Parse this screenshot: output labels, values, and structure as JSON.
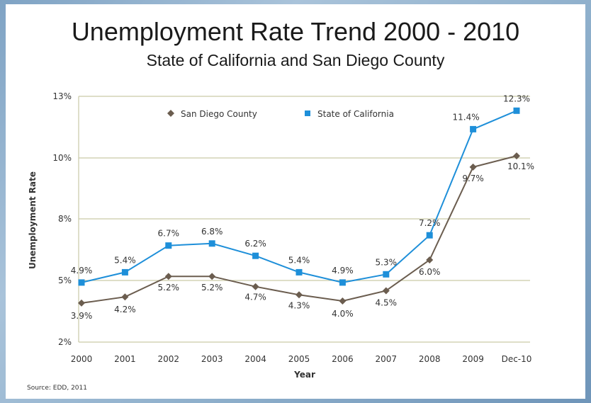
{
  "chart_data": {
    "type": "line",
    "title": "Unemployment Rate Trend 2000 - 2010",
    "subtitle": "State of California and San Diego County",
    "xlabel": "Year",
    "ylabel": "Unemployment Rate",
    "categories": [
      "2000",
      "2001",
      "2002",
      "2003",
      "2004",
      "2005",
      "2006",
      "2007",
      "2008",
      "2009",
      "Dec-10"
    ],
    "y_ticks": [
      {
        "value": 2,
        "label": "2%"
      },
      {
        "value": 5,
        "label": "5%"
      },
      {
        "value": 8,
        "label": "8%"
      },
      {
        "value": 10,
        "label": "10%"
      },
      {
        "value": 13,
        "label": "13%"
      }
    ],
    "ylim": [
      2,
      13
    ],
    "grid": "horizontal",
    "legend_position": "top-left",
    "series": [
      {
        "name": "San Diego County",
        "color": "#6b5d4f",
        "marker": "diamond",
        "values": [
          3.9,
          4.2,
          5.2,
          5.2,
          4.7,
          4.3,
          4.0,
          4.5,
          6.0,
          9.7,
          10.1
        ],
        "labels": [
          "3.9%",
          "4.2%",
          "5.2%",
          "5.2%",
          "4.7%",
          "4.3%",
          "4.0%",
          "4.5%",
          "6.0%",
          "9.7%",
          "10.1%"
        ]
      },
      {
        "name": "State of California",
        "color": "#1e8fd9",
        "marker": "square",
        "values": [
          4.9,
          5.4,
          6.7,
          6.8,
          6.2,
          5.4,
          4.9,
          5.3,
          7.2,
          11.4,
          12.3
        ],
        "labels": [
          "4.9%",
          "5.4%",
          "6.7%",
          "6.8%",
          "6.2%",
          "5.4%",
          "4.9%",
          "5.3%",
          "7.2%",
          "11.4%",
          "12.3%"
        ]
      }
    ],
    "source": "Source: EDD, 2011"
  }
}
